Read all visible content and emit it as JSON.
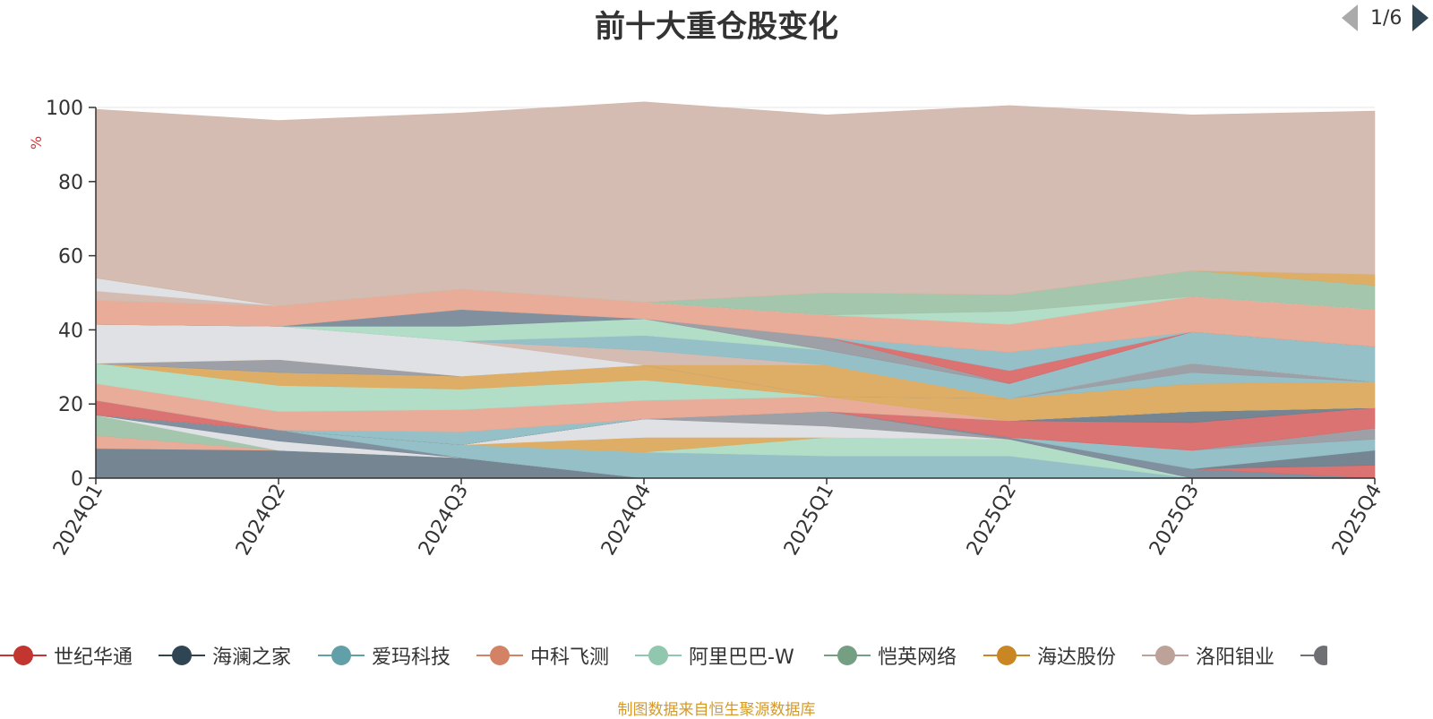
{
  "chart_data": {
    "type": "area",
    "stacked": true,
    "title": "前十大重仓股变化",
    "unit": "%",
    "categories": [
      "2024Q1",
      "2024Q2",
      "2024Q3",
      "2024Q4",
      "2025Q1",
      "2025Q2",
      "2025Q3",
      "2025Q4"
    ],
    "ylim": [
      0,
      100
    ],
    "yticks": [
      0,
      20,
      40,
      60,
      80,
      100
    ],
    "grid": true,
    "legend_position": "bottom",
    "legend_page": "1/6",
    "series": [
      {
        "name": "",
        "color": "#6e7e8c",
        "values": [
          8,
          7.5,
          5.5,
          0,
          0,
          0,
          0,
          0
        ]
      },
      {
        "name": "",
        "color": "#e8a894",
        "values": [
          3.5,
          0,
          0,
          0,
          0,
          0,
          0,
          0
        ]
      },
      {
        "name": "",
        "color": "#9fc3a8",
        "values": [
          5.5,
          0,
          0,
          0,
          0,
          0,
          0,
          0
        ]
      },
      {
        "name": "",
        "color": "#dedfe4",
        "values": [
          0,
          2.5,
          0,
          0,
          0,
          0,
          0,
          0
        ]
      },
      {
        "name": "",
        "color": "#7a8a99",
        "values": [
          0,
          3,
          0,
          0,
          0,
          0,
          0,
          0
        ]
      },
      {
        "name": "爱玛科技",
        "color": "#90bdc4",
        "values": [
          0,
          0,
          3.5,
          7,
          6,
          6,
          0,
          0
        ]
      },
      {
        "name": "阿里巴巴-W",
        "color": "#aedbc4",
        "values": [
          0,
          0,
          0,
          0,
          5,
          4.5,
          0,
          0
        ]
      },
      {
        "name": "海达股份",
        "color": "#dcaa5f",
        "values": [
          0,
          0,
          0,
          4,
          0,
          0,
          0,
          0
        ]
      },
      {
        "name": "",
        "color": "#dedfe4",
        "values": [
          0,
          0,
          0,
          5,
          3,
          0,
          0,
          0
        ]
      },
      {
        "name": "",
        "color": "#999ba2",
        "values": [
          0,
          0,
          0,
          0,
          4,
          0,
          0,
          0
        ]
      },
      {
        "name": "",
        "color": "#7a8a99",
        "values": [
          0,
          0,
          0,
          0,
          0,
          0.5,
          2.5,
          0
        ]
      },
      {
        "name": "世纪华通",
        "color": "#d96b6b",
        "values": [
          4,
          0,
          0,
          0,
          0,
          0,
          0,
          3.5
        ]
      },
      {
        "name": "海澜之家",
        "color": "#6e7e8c",
        "values": [
          0,
          0,
          0,
          0,
          0,
          0,
          0,
          4
        ]
      },
      {
        "name": "",
        "color": "#90bdc4",
        "values": [
          0,
          0,
          0,
          0,
          0,
          0,
          5,
          3
        ]
      },
      {
        "name": "",
        "color": "#999ba2",
        "values": [
          0,
          0,
          0,
          0,
          0,
          0,
          0,
          3
        ]
      },
      {
        "name": "",
        "color": "#d96b6b",
        "values": [
          0,
          0,
          0,
          0,
          0,
          4.5,
          7.5,
          5.5
        ]
      },
      {
        "name": "",
        "color": "#6e7e8c",
        "values": [
          0,
          0,
          0,
          0,
          0,
          0,
          3,
          0
        ]
      },
      {
        "name": "",
        "color": "#90bdc4",
        "values": [
          0,
          0,
          3.5,
          0,
          0,
          0,
          0,
          0
        ]
      },
      {
        "name": "中科飞测",
        "color": "#e8a894",
        "values": [
          4.5,
          5,
          6,
          5,
          4,
          0,
          0,
          0
        ]
      },
      {
        "name": "",
        "color": "#aedbc4",
        "values": [
          5.5,
          7,
          5.5,
          5.5,
          0,
          0,
          0,
          0
        ]
      },
      {
        "name": "",
        "color": "#dcaa5f",
        "values": [
          0,
          3.5,
          3.5,
          4,
          0,
          6,
          7.5,
          7
        ]
      },
      {
        "name": "",
        "color": "#90bdc4",
        "values": [
          0,
          0,
          0,
          0,
          0,
          0,
          3,
          0
        ]
      },
      {
        "name": "",
        "color": "#999ba2",
        "values": [
          0,
          0,
          0,
          0,
          0,
          0,
          2.5,
          0
        ]
      },
      {
        "name": "",
        "color": "#999ba2",
        "values": [
          0,
          3.5,
          0,
          0,
          0,
          0,
          0,
          0
        ]
      },
      {
        "name": "",
        "color": "#dcaa5f",
        "values": [
          0,
          0,
          0,
          0,
          8.5,
          0,
          0,
          0
        ]
      },
      {
        "name": "",
        "color": "#dedfe4",
        "values": [
          10.5,
          9,
          9.5,
          0,
          0,
          0,
          0,
          0
        ]
      },
      {
        "name": "",
        "color": "#d2b8ae",
        "values": [
          0,
          0,
          0,
          4,
          0,
          0,
          0,
          0
        ]
      },
      {
        "name": "",
        "color": "#90bdc4",
        "values": [
          0,
          0,
          0,
          4,
          4,
          4,
          8.5,
          9.5
        ]
      },
      {
        "name": "",
        "color": "#aedbc4",
        "values": [
          0,
          0,
          4,
          4.5,
          0,
          0,
          0,
          0
        ]
      },
      {
        "name": "",
        "color": "#7a8a99",
        "values": [
          0,
          0,
          4.5,
          0,
          0,
          0,
          0,
          0
        ]
      },
      {
        "name": "",
        "color": "#999ba2",
        "values": [
          0,
          0,
          0,
          0,
          3.5,
          0,
          0,
          0
        ]
      },
      {
        "name": "",
        "color": "#d96b6b",
        "values": [
          0,
          0,
          0,
          0,
          0,
          3.5,
          0,
          0
        ]
      },
      {
        "name": "",
        "color": "#90bdc4",
        "values": [
          0,
          0,
          0,
          0,
          0,
          5,
          0,
          0
        ]
      },
      {
        "name": "",
        "color": "#e8a894",
        "values": [
          6.5,
          5.5,
          5.5,
          4.5,
          6,
          7.5,
          9.5,
          10
        ]
      },
      {
        "name": "",
        "color": "#aedbc4",
        "values": [
          0,
          0,
          0,
          0,
          0,
          3.5,
          0,
          0
        ]
      },
      {
        "name": "",
        "color": "#d2b8ae",
        "values": [
          2.5,
          0,
          0,
          0,
          0,
          0,
          0,
          0
        ]
      },
      {
        "name": "",
        "color": "#dedfe4",
        "values": [
          3.5,
          0,
          0,
          0,
          0,
          0,
          0,
          0
        ]
      },
      {
        "name": "恺英网络",
        "color": "#9fc3a8",
        "values": [
          0,
          0,
          0,
          0,
          6,
          4.5,
          7,
          6.5
        ]
      },
      {
        "name": "",
        "color": "#dcaa5f",
        "values": [
          0,
          0,
          0,
          0,
          0,
          0,
          0,
          3
        ]
      },
      {
        "name": "洛阳钼业",
        "color": "#d2b8ae",
        "values": [
          45.5,
          50,
          47.5,
          54,
          48,
          51,
          42,
          44
        ]
      }
    ]
  },
  "legend": {
    "items": [
      {
        "name": "世纪华通",
        "color": "#c23531"
      },
      {
        "name": "海澜之家",
        "color": "#2f4554"
      },
      {
        "name": "爱玛科技",
        "color": "#61a0a8"
      },
      {
        "name": "中科飞测",
        "color": "#d48265"
      },
      {
        "name": "阿里巴巴-W",
        "color": "#91c7ae"
      },
      {
        "name": "恺英网络",
        "color": "#749f83"
      },
      {
        "name": "海达股份",
        "color": "#ca8622"
      },
      {
        "name": "洛阳钼业",
        "color": "#bda29a"
      },
      {
        "name": "",
        "color": "#6e7074"
      }
    ],
    "page_indicator": "1/6"
  },
  "source_note": "制图数据来自恒生聚源数据库"
}
